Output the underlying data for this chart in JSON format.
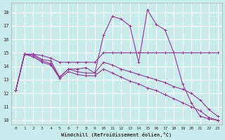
{
  "xlabel": "Windchill (Refroidissement éolien,°C)",
  "background_color": "#c8ecec",
  "grid_color": "#ffffff",
  "line_color": "#993399",
  "x_ticks": [
    0,
    1,
    2,
    3,
    4,
    5,
    6,
    7,
    8,
    9,
    10,
    11,
    12,
    13,
    14,
    15,
    16,
    17,
    18,
    19,
    20,
    21,
    22,
    23
  ],
  "y_ticks": [
    10,
    11,
    12,
    13,
    14,
    15,
    16,
    17,
    18
  ],
  "ylim": [
    9.7,
    18.7
  ],
  "xlim": [
    -0.5,
    23.5
  ],
  "series": [
    {
      "x": [
        0,
        1,
        2,
        3,
        4,
        5,
        6,
        7,
        8,
        9,
        10,
        11,
        12,
        13,
        14,
        15,
        16,
        17,
        18,
        19,
        20,
        21,
        22,
        23
      ],
      "y": [
        12.2,
        14.9,
        14.9,
        14.5,
        14.4,
        13.2,
        13.8,
        13.8,
        13.9,
        13.5,
        16.3,
        17.7,
        17.5,
        17.0,
        14.3,
        18.2,
        17.1,
        16.7,
        15.0,
        12.7,
        11.3,
        10.3,
        10.1,
        10.0
      ]
    },
    {
      "x": [
        0,
        1,
        2,
        3,
        4,
        5,
        6,
        7,
        8,
        9,
        10,
        11,
        12,
        13,
        14,
        15,
        16,
        17,
        18,
        19,
        20,
        21,
        22,
        23
      ],
      "y": [
        12.2,
        14.9,
        14.9,
        14.8,
        14.6,
        14.3,
        14.3,
        14.3,
        14.3,
        14.3,
        15.0,
        15.0,
        15.0,
        15.0,
        15.0,
        15.0,
        15.0,
        15.0,
        15.0,
        15.0,
        15.0,
        15.0,
        15.0,
        15.0
      ]
    },
    {
      "x": [
        0,
        1,
        2,
        3,
        4,
        5,
        6,
        7,
        8,
        9,
        10,
        11,
        12,
        13,
        14,
        15,
        16,
        17,
        18,
        19,
        20,
        21,
        22,
        23
      ],
      "y": [
        12.2,
        14.9,
        14.8,
        14.4,
        14.2,
        13.2,
        13.8,
        13.6,
        13.5,
        13.5,
        14.3,
        14.1,
        13.8,
        13.6,
        13.4,
        13.2,
        13.0,
        12.8,
        12.5,
        12.3,
        12.0,
        11.5,
        10.8,
        10.3
      ]
    },
    {
      "x": [
        0,
        1,
        2,
        3,
        4,
        5,
        6,
        7,
        8,
        9,
        10,
        11,
        12,
        13,
        14,
        15,
        16,
        17,
        18,
        19,
        20,
        21,
        22,
        23
      ],
      "y": [
        12.2,
        14.9,
        14.7,
        14.3,
        14.1,
        13.1,
        13.6,
        13.4,
        13.3,
        13.3,
        13.8,
        13.5,
        13.2,
        12.9,
        12.7,
        12.4,
        12.2,
        11.9,
        11.6,
        11.3,
        11.0,
        10.7,
        10.2,
        10.0
      ]
    }
  ]
}
